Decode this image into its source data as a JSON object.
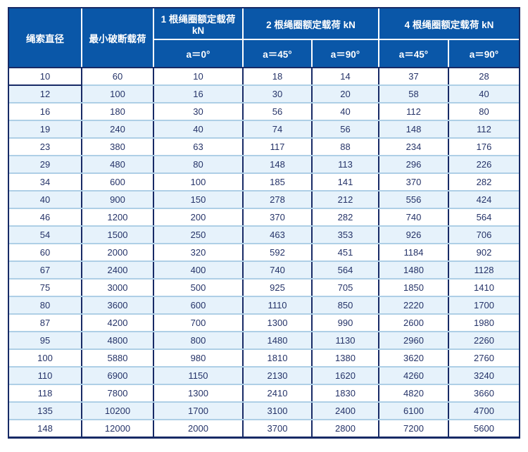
{
  "colors": {
    "header_blue": "#0a57a8",
    "border_navy": "#172a66",
    "row_alt": "#e6f2fb",
    "row_line": "#aecfe6",
    "text_navy": "#253368"
  },
  "chart_data": {
    "type": "table",
    "title": "",
    "header": {
      "diameter": "绳索直径",
      "min_break_load": "最小破断载荷",
      "groups": [
        {
          "label": "1 根绳圈额定载荷 kN",
          "subs": [
            "a＝0°"
          ]
        },
        {
          "label": "2 根绳圈额定载荷 kN",
          "subs": [
            "a＝45°",
            "a＝90°"
          ]
        },
        {
          "label": "4 根绳圈额定载荷 kN",
          "subs": [
            "a＝45°",
            "a＝90°"
          ]
        }
      ]
    },
    "rows": [
      [
        10,
        60,
        10,
        18,
        14,
        37,
        28
      ],
      [
        12,
        100,
        16,
        30,
        20,
        58,
        40
      ],
      [
        16,
        180,
        30,
        56,
        40,
        112,
        80
      ],
      [
        19,
        240,
        40,
        74,
        56,
        148,
        112
      ],
      [
        23,
        380,
        63,
        117,
        88,
        234,
        176
      ],
      [
        29,
        480,
        80,
        148,
        113,
        296,
        226
      ],
      [
        34,
        600,
        100,
        185,
        141,
        370,
        282
      ],
      [
        40,
        900,
        150,
        278,
        212,
        556,
        424
      ],
      [
        46,
        1200,
        200,
        370,
        282,
        740,
        564
      ],
      [
        54,
        1500,
        250,
        463,
        353,
        926,
        706
      ],
      [
        60,
        2000,
        320,
        592,
        451,
        1184,
        902
      ],
      [
        67,
        2400,
        400,
        740,
        564,
        1480,
        1128
      ],
      [
        75,
        3000,
        500,
        925,
        705,
        1850,
        1410
      ],
      [
        80,
        3600,
        600,
        1110,
        850,
        2220,
        1700
      ],
      [
        87,
        4200,
        700,
        1300,
        990,
        2600,
        1980
      ],
      [
        95,
        4800,
        800,
        1480,
        1130,
        2960,
        2260
      ],
      [
        100,
        5880,
        980,
        1810,
        1380,
        3620,
        2760
      ],
      [
        110,
        6900,
        1150,
        2130,
        1620,
        4260,
        3240
      ],
      [
        118,
        7800,
        1300,
        2410,
        1830,
        4820,
        3660
      ],
      [
        135,
        10200,
        1700,
        3100,
        2400,
        6100,
        4700
      ],
      [
        148,
        12000,
        2000,
        3700,
        2800,
        7200,
        5600
      ]
    ]
  }
}
